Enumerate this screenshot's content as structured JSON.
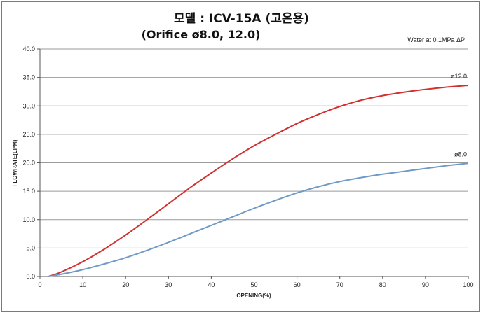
{
  "chart_data": {
    "type": "line",
    "title": "모델 : ICV-15A (고온용)",
    "subtitle": "(Orifice ø8.0,  12.0)",
    "annotation": "Water at 0.1MPa ΔP",
    "xlabel": "OPENING(%)",
    "ylabel": "FLOWRATE(LPM)",
    "xlim": [
      0,
      100
    ],
    "ylim": [
      0,
      40
    ],
    "x_ticks": [
      0,
      10,
      20,
      30,
      40,
      50,
      60,
      70,
      80,
      90,
      100
    ],
    "y_ticks": [
      "0.0",
      "5.0",
      "10.0",
      "15.0",
      "20.0",
      "25.0",
      "30.0",
      "35.0",
      "40.0"
    ],
    "grid": "horizontal",
    "x": [
      2,
      5,
      10,
      15,
      20,
      25,
      30,
      35,
      40,
      45,
      50,
      55,
      60,
      65,
      70,
      75,
      80,
      85,
      90,
      95,
      100
    ],
    "series": [
      {
        "name": "ø12.0",
        "color": "#d2302e",
        "values": [
          0.0,
          0.8,
          2.6,
          4.8,
          7.3,
          10.0,
          12.8,
          15.6,
          18.2,
          20.7,
          23.0,
          25.0,
          26.9,
          28.5,
          29.9,
          31.0,
          31.8,
          32.4,
          32.9,
          33.3,
          33.6
        ]
      },
      {
        "name": "ø8.0",
        "color": "#6f9ac8",
        "values": [
          0.0,
          0.4,
          1.2,
          2.2,
          3.3,
          4.6,
          6.0,
          7.5,
          9.0,
          10.5,
          12.0,
          13.4,
          14.7,
          15.8,
          16.7,
          17.4,
          18.0,
          18.5,
          19.0,
          19.5,
          19.9
        ]
      }
    ]
  }
}
